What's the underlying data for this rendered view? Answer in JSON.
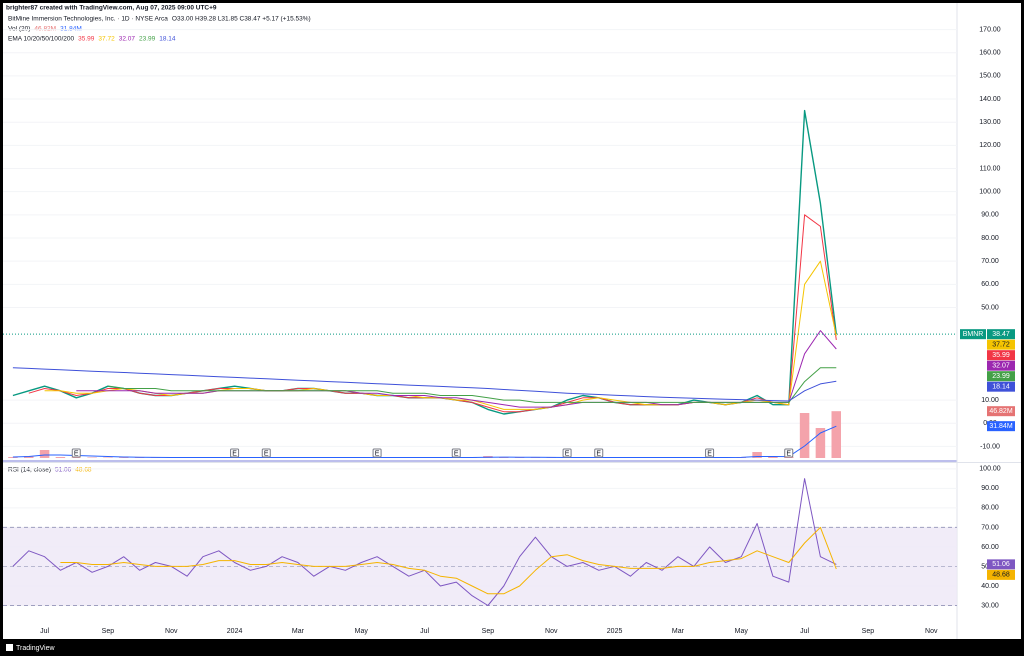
{
  "header": {
    "credit": "brighter87 created with TradingView.com, Aug 07, 2025 09:00 UTC+9"
  },
  "chart_data": {
    "type": "line",
    "title": "BitMine Immersion Technologies, Inc. · 1D · NYSE Arca",
    "subtitle": "O33.00 H39.28 L31.85 C38.47 +5.17 (+15.53%)",
    "symbol": "BMNR",
    "indicator_label": "EMA 10/20/50/100/200",
    "grid": true,
    "categories": [
      null,
      null,
      "Jul",
      null,
      null,
      null,
      "Sep",
      null,
      null,
      null,
      "Nov",
      null,
      null,
      null,
      "2024",
      null,
      null,
      null,
      "Mar",
      null,
      null,
      null,
      "May",
      null,
      null,
      null,
      "Jul",
      null,
      null,
      null,
      "Sep",
      null,
      null,
      null,
      "Nov",
      null,
      null,
      null,
      "2025",
      null,
      null,
      null,
      "Mar",
      null,
      null,
      null,
      "May",
      null,
      null,
      null,
      "Jul",
      null,
      null,
      null,
      "Sep",
      null,
      null,
      null,
      "Nov",
      null
    ],
    "ylim": [
      -15,
      175
    ],
    "yticks": [
      {
        "value": 170,
        "label": "170.00"
      },
      {
        "value": 160,
        "label": "160.00"
      },
      {
        "value": 150,
        "label": "150.00"
      },
      {
        "value": 140,
        "label": "140.00"
      },
      {
        "value": 130,
        "label": "130.00"
      },
      {
        "value": 120,
        "label": "120.00"
      },
      {
        "value": 110,
        "label": "110.00"
      },
      {
        "value": 100,
        "label": "100.00"
      },
      {
        "value": 90,
        "label": "90.00"
      },
      {
        "value": 80,
        "label": "80.00"
      },
      {
        "value": 70,
        "label": "70.00"
      },
      {
        "value": 60,
        "label": "60.00"
      },
      {
        "value": 50,
        "label": "50.00"
      },
      {
        "value": 10,
        "label": "10.00"
      },
      {
        "value": 0,
        "label": "0.00"
      },
      {
        "value": -10,
        "label": "-10.00"
      }
    ],
    "series": [
      {
        "color": "#089981",
        "values": [
          12,
          14,
          16,
          14,
          11,
          13,
          16,
          15,
          13,
          12,
          12,
          13,
          14,
          15,
          16,
          15,
          14,
          14,
          15,
          15,
          14,
          13,
          13,
          12,
          12,
          11,
          11,
          11,
          10,
          9,
          6,
          4,
          5,
          6,
          7,
          10,
          12,
          11,
          9,
          8,
          8,
          8,
          8,
          10,
          9,
          8,
          9,
          12,
          8,
          8,
          135,
          95,
          38.47,
          null,
          null,
          null,
          null,
          null,
          null,
          null
        ]
      },
      {
        "color": "#f23645",
        "values": [
          null,
          13,
          15,
          14,
          12,
          13,
          15,
          15,
          13,
          12,
          12,
          13,
          14,
          15,
          15,
          15,
          14,
          14,
          15,
          15,
          14,
          13,
          13,
          12,
          12,
          11,
          11,
          11,
          10,
          9,
          7,
          5,
          5,
          6,
          7,
          9,
          11,
          11,
          9,
          8,
          8,
          8,
          8,
          9,
          9,
          8,
          9,
          11,
          9,
          8,
          90,
          85,
          35.99,
          null,
          null,
          null,
          null,
          null,
          null,
          null
        ]
      },
      {
        "color": "#f5c400",
        "values": [
          null,
          null,
          14,
          14,
          13,
          13,
          14,
          15,
          14,
          13,
          12,
          13,
          13,
          14,
          15,
          15,
          14,
          14,
          14,
          15,
          14,
          14,
          13,
          12,
          12,
          12,
          11,
          11,
          10,
          10,
          8,
          6,
          6,
          6,
          7,
          8,
          10,
          11,
          10,
          9,
          8,
          8,
          8,
          9,
          9,
          8,
          9,
          10,
          9,
          8,
          60,
          70,
          37.72,
          null,
          null,
          null,
          null,
          null,
          null,
          null
        ]
      },
      {
        "color": "#9c27b0",
        "values": [
          null,
          null,
          null,
          null,
          14,
          14,
          14,
          14,
          14,
          13,
          13,
          13,
          13,
          14,
          14,
          14,
          14,
          14,
          14,
          14,
          14,
          14,
          13,
          13,
          12,
          12,
          12,
          11,
          11,
          10,
          9,
          8,
          7,
          7,
          7,
          8,
          9,
          9,
          9,
          9,
          9,
          8,
          8,
          9,
          9,
          9,
          9,
          9,
          9,
          9,
          30,
          40,
          32.07,
          null,
          null,
          null,
          null,
          null,
          null,
          null
        ]
      },
      {
        "color": "#43a047",
        "values": [
          null,
          null,
          null,
          null,
          null,
          null,
          16,
          15,
          15,
          15,
          14,
          14,
          14,
          14,
          14,
          14,
          14,
          14,
          14,
          14,
          14,
          14,
          14,
          14,
          13,
          13,
          13,
          12,
          12,
          12,
          11,
          10,
          10,
          9,
          9,
          9,
          9,
          9,
          9,
          9,
          9,
          9,
          9,
          9,
          9,
          9,
          9,
          9,
          9,
          9,
          18,
          24,
          23.99,
          null,
          null,
          null,
          null,
          null,
          null,
          null
        ]
      },
      {
        "color": "#3f51d9",
        "values": [
          24,
          23.7,
          23.4,
          23.1,
          22.8,
          22.5,
          22.2,
          21.9,
          21.6,
          21.3,
          21,
          20.7,
          20.4,
          20.1,
          19.8,
          19.5,
          19.2,
          18.9,
          18.6,
          18.3,
          18,
          17.7,
          17.4,
          17.1,
          16.8,
          16.5,
          16.2,
          15.9,
          15.6,
          15.3,
          15,
          14.6,
          14.2,
          13.8,
          13.4,
          13,
          12.7,
          12.4,
          12.1,
          11.8,
          11.5,
          11.2,
          11,
          10.8,
          10.6,
          10.4,
          10.2,
          10,
          9.8,
          9.6,
          14,
          17,
          18.14,
          null,
          null,
          null,
          null,
          null,
          null,
          null
        ]
      }
    ],
    "volume": {
      "name": "Vol (20)",
      "color": "#f4a3ab",
      "ma_color": "#2962ff",
      "ylim": [
        0,
        100
      ],
      "values": [
        1,
        2,
        8,
        1,
        0.5,
        0.5,
        0.5,
        0.5,
        0.5,
        0.5,
        0.5,
        0.5,
        0.5,
        0.5,
        0.5,
        0.5,
        0.5,
        0.5,
        0.5,
        0.5,
        0.5,
        0.5,
        0.5,
        0.5,
        0.5,
        0.5,
        0.5,
        0.5,
        0.5,
        0.5,
        2,
        1,
        0.5,
        0.5,
        0.5,
        0.5,
        0.5,
        0.5,
        0.5,
        0.5,
        0.5,
        0.5,
        0.5,
        0.5,
        0.5,
        0.5,
        1,
        6,
        1,
        1,
        45,
        30,
        46.82,
        null,
        null,
        null,
        null,
        null,
        null,
        null
      ],
      "value_labels": [
        null,
        null,
        null,
        null,
        null,
        null,
        null,
        null,
        null,
        null,
        null,
        null,
        null,
        null,
        null,
        null,
        null,
        null,
        null,
        null,
        null,
        null,
        null,
        null,
        null,
        null,
        null,
        null,
        null,
        null,
        null,
        null,
        null,
        null,
        null,
        null,
        null,
        null,
        null,
        null,
        null,
        null,
        null,
        null,
        null,
        null,
        null,
        null,
        null,
        null,
        null,
        null,
        "46.82M",
        null,
        null,
        null,
        null,
        null,
        null,
        null
      ],
      "ma_values": [
        1,
        1.5,
        3,
        3,
        2.5,
        2,
        1.5,
        1,
        0.8,
        0.6,
        0.5,
        0.5,
        0.5,
        0.5,
        0.5,
        0.5,
        0.5,
        0.5,
        0.5,
        0.5,
        0.5,
        0.5,
        0.5,
        0.5,
        0.5,
        0.5,
        0.5,
        0.5,
        0.5,
        0.5,
        0.8,
        0.9,
        0.8,
        0.7,
        0.6,
        0.5,
        0.5,
        0.5,
        0.5,
        0.5,
        0.5,
        0.5,
        0.5,
        0.5,
        0.5,
        0.5,
        0.6,
        1.5,
        1.5,
        1.4,
        12,
        25,
        31.84,
        null,
        null,
        null,
        null,
        null,
        null,
        null
      ],
      "ma_value_labels": [
        null,
        null,
        null,
        null,
        null,
        null,
        null,
        null,
        null,
        null,
        null,
        null,
        null,
        null,
        null,
        null,
        null,
        null,
        null,
        null,
        null,
        null,
        null,
        null,
        null,
        null,
        null,
        null,
        null,
        null,
        null,
        null,
        null,
        null,
        null,
        null,
        null,
        null,
        null,
        null,
        null,
        null,
        null,
        null,
        null,
        null,
        null,
        null,
        null,
        null,
        null,
        null,
        "31.84M",
        null,
        null,
        null,
        null,
        null,
        null,
        null
      ]
    },
    "events": [
      {
        "category": 4,
        "label": "E"
      },
      {
        "category": 14,
        "label": "E"
      },
      {
        "category": 16,
        "label": "E"
      },
      {
        "category": 23,
        "label": "E"
      },
      {
        "category": 28,
        "label": "E"
      },
      {
        "category": 35,
        "label": "E"
      },
      {
        "category": 37,
        "label": "E"
      },
      {
        "category": 44,
        "label": "E"
      },
      {
        "category": 49,
        "label": "E"
      }
    ],
    "rsi": {
      "title": "RSI (14, close)",
      "ylim": [
        20,
        103
      ],
      "yticks": [
        {
          "value": 100,
          "label": "100.00"
        },
        {
          "value": 90,
          "label": "90.00"
        },
        {
          "value": 80,
          "label": "80.00"
        },
        {
          "value": 70,
          "label": "70.00"
        },
        {
          "value": 60,
          "label": "60.00"
        },
        {
          "value": 50,
          "label": "50.00"
        },
        {
          "value": 40,
          "label": "40.00"
        },
        {
          "value": 30,
          "label": "30.00"
        }
      ],
      "band": [
        30,
        70
      ],
      "midline": 50,
      "series": [
        {
          "color": "#7e57c2",
          "values": [
            50,
            58,
            55,
            48,
            52,
            47,
            50,
            55,
            48,
            52,
            50,
            45,
            55,
            58,
            52,
            48,
            50,
            55,
            52,
            45,
            50,
            48,
            52,
            55,
            50,
            45,
            48,
            40,
            42,
            35,
            30,
            40,
            55,
            65,
            55,
            50,
            52,
            48,
            50,
            45,
            52,
            48,
            55,
            50,
            60,
            52,
            55,
            72,
            45,
            42,
            95,
            55,
            51.06,
            null,
            null,
            null,
            null,
            null,
            null,
            null
          ]
        },
        {
          "color": "#f5b400",
          "values": [
            null,
            null,
            null,
            52,
            52,
            51,
            51,
            52,
            51,
            50,
            50,
            50,
            51,
            53,
            53,
            51,
            51,
            52,
            51,
            50,
            50,
            50,
            51,
            52,
            51,
            49,
            48,
            45,
            44,
            40,
            36,
            36,
            40,
            48,
            55,
            56,
            53,
            51,
            50,
            49,
            49,
            49,
            50,
            50,
            52,
            53,
            54,
            58,
            55,
            52,
            62,
            70,
            48.68,
            null,
            null,
            null,
            null,
            null,
            null,
            null
          ]
        }
      ]
    }
  },
  "footer": "TradingView"
}
